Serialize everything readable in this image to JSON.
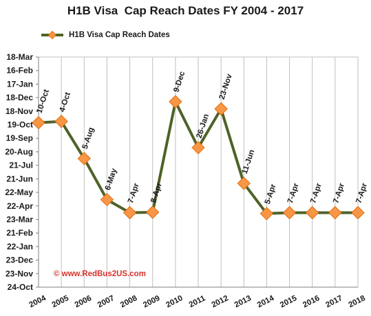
{
  "chart_data": {
    "type": "line",
    "title": "H1B Visa  Cap Reach Dates FY 2004 - 2017",
    "xlabel": "",
    "ylabel": "",
    "grid": "vertical",
    "legend_placement": "top-left",
    "y_tick_labels": [
      "18-Mar",
      "16-Feb",
      "17-Jan",
      "18-Dec",
      "18-Nov",
      "19-Oct",
      "19-Sep",
      "20-Aug",
      "21-Jul",
      "21-Jun",
      "22-May",
      "22-Apr",
      "23-Mar",
      "21-Feb",
      "22-Jan",
      "23-Dec",
      "23-Nov",
      "24-Oct"
    ],
    "categories": [
      "2004",
      "2005",
      "2006",
      "2007",
      "2008",
      "2009",
      "2010",
      "2011",
      "2012",
      "2013",
      "2014",
      "2015",
      "2016",
      "2017",
      "2018"
    ],
    "series": [
      {
        "name": "H1B Visa Cap Reach Dates",
        "values": [
          "10-Oct",
          "4-Oct",
          "5-Aug",
          "6-May",
          "7-Apr",
          "8-Apr",
          "9-Dec",
          "26-Jan",
          "23-Nov",
          "11-Jun",
          "5-Apr",
          "7-Apr",
          "7-Apr",
          "7-Apr",
          "7-Apr"
        ],
        "labels": [
          "10-Oct",
          "4-Oct",
          "5-Aug",
          "6-May",
          "7-Apr",
          "8-Apr",
          "9-Dec",
          "26-Jan",
          "23-Nov",
          "11-Jun",
          "5-Apr",
          "7-Apr",
          "7-Apr",
          "7-Apr",
          "7-Apr"
        ]
      }
    ],
    "colors": {
      "line": "#4f6228",
      "marker_fill": "#f79646",
      "marker_stroke": "#e46c0a",
      "grid": "#bfbfbf",
      "axis": "#7f7f7f",
      "watermark": "#d6322a"
    }
  },
  "watermark": "© www.RedBus2US.com"
}
